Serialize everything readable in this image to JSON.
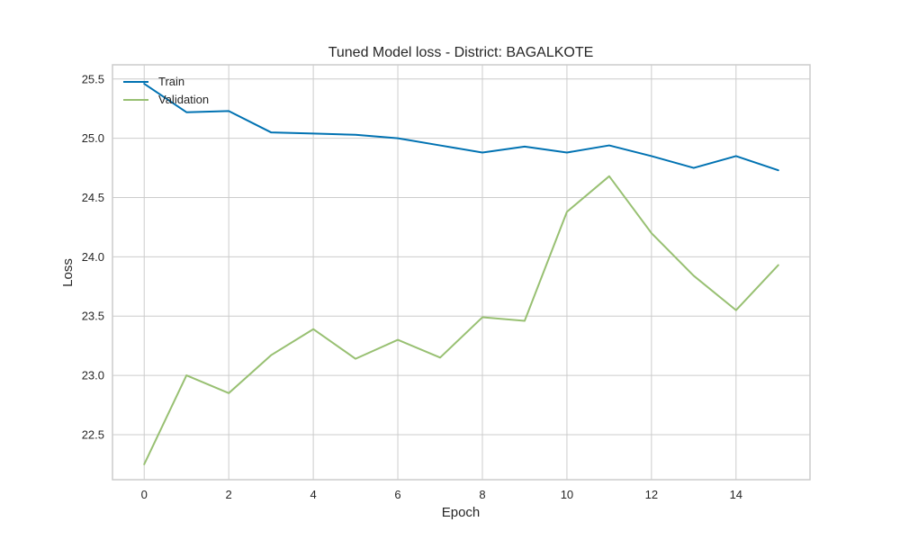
{
  "chart_data": {
    "type": "line",
    "title": "Tuned Model loss - District: BAGALKOTE",
    "xlabel": "Epoch",
    "ylabel": "Loss",
    "x": [
      0,
      1,
      2,
      3,
      4,
      5,
      6,
      7,
      8,
      9,
      10,
      11,
      12,
      13,
      14,
      15
    ],
    "xlim": [
      -0.75,
      15.75
    ],
    "ylim": [
      22.12,
      25.62
    ],
    "xticks": [
      0,
      2,
      4,
      6,
      8,
      10,
      12,
      14
    ],
    "yticks": [
      22.5,
      23.0,
      23.5,
      24.0,
      24.5,
      25.0,
      25.5
    ],
    "ytick_labels": [
      "22.5",
      "23.0",
      "23.5",
      "24.0",
      "24.5",
      "25.0",
      "25.5"
    ],
    "grid": true,
    "legend_position": "top-left",
    "series": [
      {
        "name": "Train",
        "color": "#0072b2",
        "values": [
          25.46,
          25.22,
          25.23,
          25.05,
          25.04,
          25.03,
          25.0,
          24.94,
          24.88,
          24.93,
          24.88,
          24.94,
          24.85,
          24.75,
          24.85,
          24.73
        ]
      },
      {
        "name": "Validation",
        "color": "#98c072",
        "values": [
          22.25,
          23.0,
          22.85,
          23.17,
          23.39,
          23.14,
          23.3,
          23.15,
          23.49,
          23.46,
          24.38,
          24.68,
          24.2,
          23.84,
          23.55,
          23.93
        ]
      }
    ]
  }
}
